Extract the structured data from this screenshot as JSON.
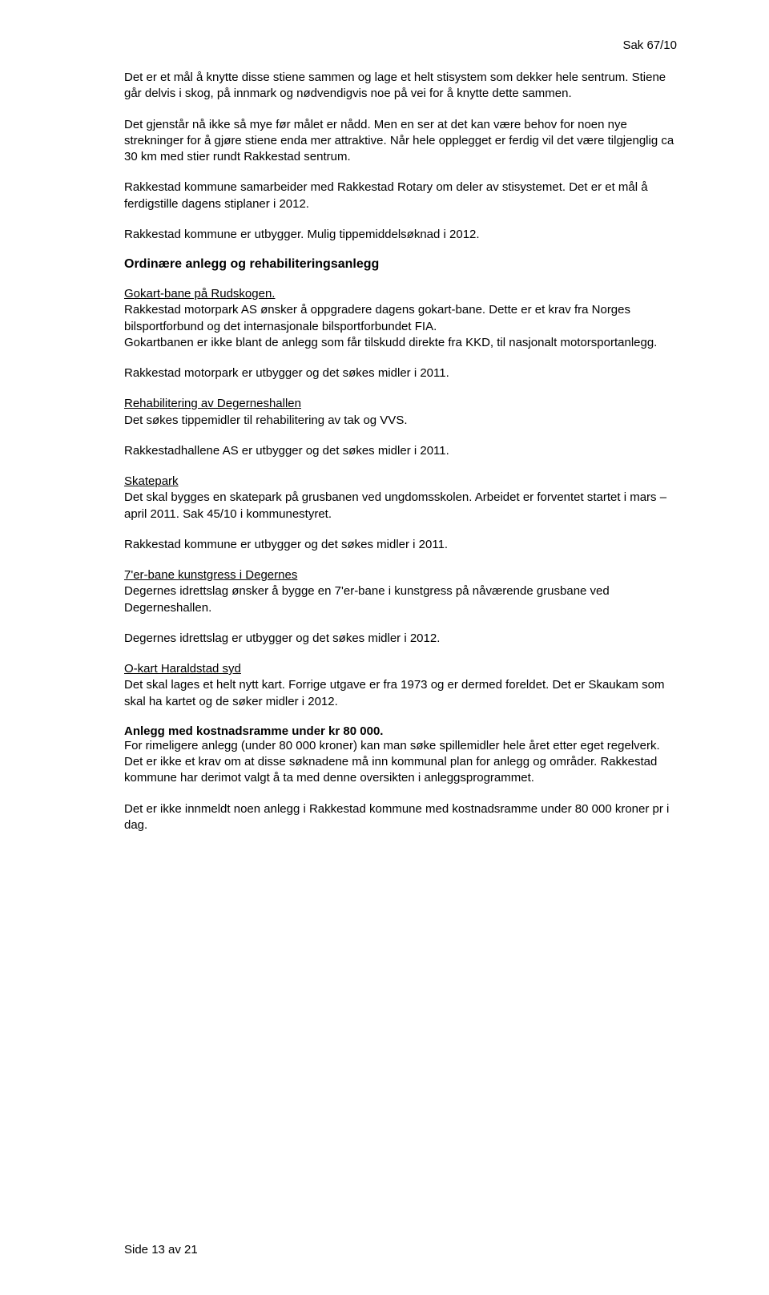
{
  "document": {
    "case_number": "Sak 67/10",
    "page_footer": "Side 13 av 21",
    "font_family": "Arial, Helvetica, sans-serif",
    "text_color": "#000000",
    "background_color": "#ffffff",
    "body_fontsize": 15,
    "heading_fontsize": 16
  },
  "p1": "Det er et mål å knytte disse stiene sammen og lage et helt stisystem som dekker hele sentrum. Stiene går delvis i skog, på innmark og nødvendigvis noe på vei for å knytte dette sammen.",
  "p2": "Det gjenstår nå ikke så mye før målet er nådd. Men en ser at det kan være behov for noen nye strekninger for å gjøre stiene enda mer attraktive.   Når hele opplegget er ferdig vil det være tilgjenglig ca 30 km med stier rundt Rakkestad sentrum.",
  "p3": "Rakkestad kommune samarbeider med Rakkestad Rotary om deler av stisystemet. Det er et mål å ferdigstille dagens stiplaner i 2012.",
  "p4": "Rakkestad kommune er utbygger. Mulig tippemiddelsøknad i 2012.",
  "h_ord": "Ordinære anlegg og rehabiliteringsanlegg",
  "u_gokart": "Gokart-bane på Rudskogen.",
  "p5": "Rakkestad motorpark AS ønsker å oppgradere dagens gokart-bane. Dette er et krav fra Norges bilsportforbund og det internasjonale bilsportforbundet FIA.",
  "p5b": "Gokartbanen er ikke blant de anlegg som får tilskudd direkte fra KKD, til nasjonalt motorsportanlegg.",
  "p6": "Rakkestad motorpark er utbygger og det søkes midler i 2011.",
  "u_rehab": "Rehabilitering av Degerneshallen",
  "p7": "Det søkes tippemidler til rehabilitering av tak og VVS.",
  "p8": "Rakkestadhallene AS er utbygger og det søkes midler i 2011.",
  "u_skate": "Skatepark",
  "p9": "Det skal bygges en skatepark på grusbanen ved ungdomsskolen. Arbeidet er forventet startet i mars – april 2011. Sak 45/10 i kommunestyret.",
  "p10": "Rakkestad kommune er utbygger og det søkes midler i 2011.",
  "u_7er": "7'er-bane kunstgress i Degernes",
  "p11": "Degernes idrettslag ønsker å bygge en 7'er-bane i kunstgress på nåværende grusbane ved Degerneshallen.",
  "p12": "Degernes idrettslag er utbygger og det søkes midler i 2012.",
  "u_okart": "O-kart Haraldstad syd",
  "p13": "Det skal lages et helt nytt kart. Forrige utgave er fra 1973 og er dermed foreldet. Det er Skaukam som skal ha kartet og de søker midler i 2012.",
  "h_anlegg": "Anlegg med kostnadsramme under kr 80 000.",
  "p14": "For rimeligere anlegg (under 80 000 kroner) kan man søke spillemidler hele året etter eget regelverk. Det er ikke et krav om at disse søknadene må inn kommunal plan for anlegg og områder. Rakkestad kommune har derimot valgt å ta med denne oversikten i anleggsprogrammet.",
  "p15": "Det er ikke innmeldt noen anlegg i Rakkestad kommune med kostnadsramme under 80 000 kroner pr i dag."
}
